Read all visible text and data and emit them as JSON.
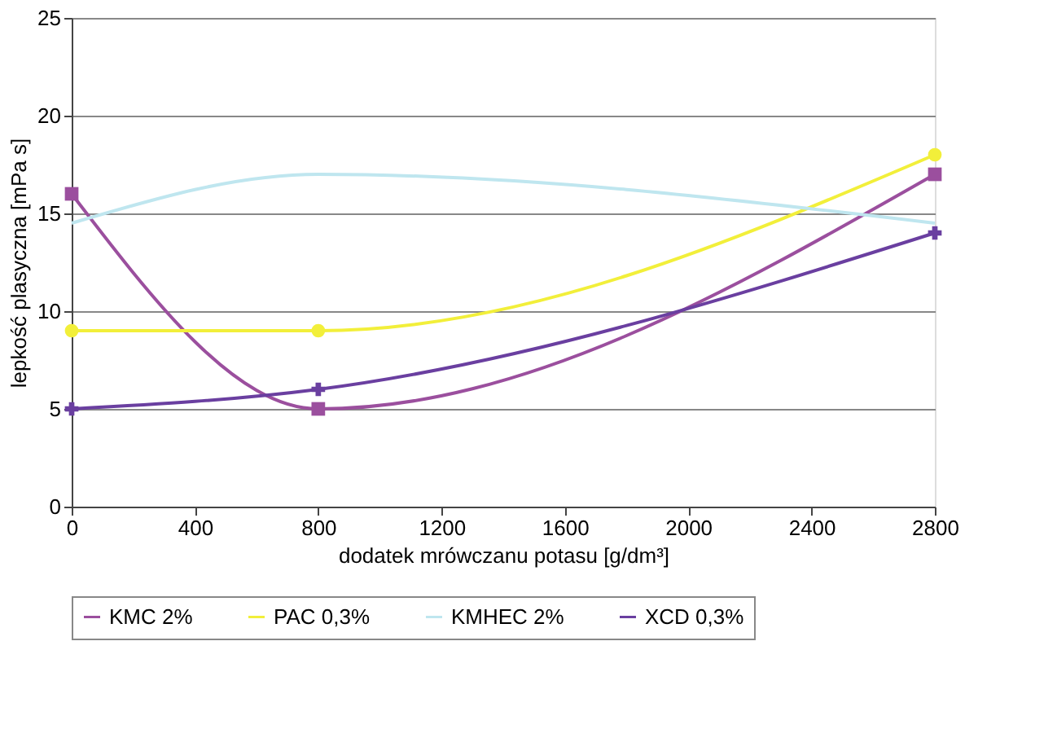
{
  "chart_data": {
    "type": "line",
    "xlabel": "dodatek mrówczanu potasu [g/dm³]",
    "ylabel": "lepkość plasyczna [mPa s]",
    "xlim": [
      0,
      2800
    ],
    "xticks": [
      0,
      400,
      800,
      1200,
      1600,
      2000,
      2400,
      2800
    ],
    "ylim": [
      0,
      25
    ],
    "yticks": [
      0,
      5,
      10,
      15,
      20,
      25
    ],
    "grid": "y",
    "legend": "bottom",
    "x": [
      0,
      800,
      2800
    ],
    "series": [
      {
        "name": "KMC 2%",
        "color": "#9b4f9e",
        "marker": "square",
        "values": [
          16,
          5,
          17
        ]
      },
      {
        "name": "PAC 0,3%",
        "color": "#f2ef3a",
        "marker": "circle",
        "values": [
          9,
          9,
          18
        ]
      },
      {
        "name": "KMHEC 2%",
        "color": "#bfe6ef",
        "marker": "none",
        "values": [
          14.5,
          17,
          14.5
        ]
      },
      {
        "name": "XCD 0,3%",
        "color": "#6a3fa0",
        "marker": "cross",
        "values": [
          5,
          6,
          14
        ]
      }
    ]
  }
}
